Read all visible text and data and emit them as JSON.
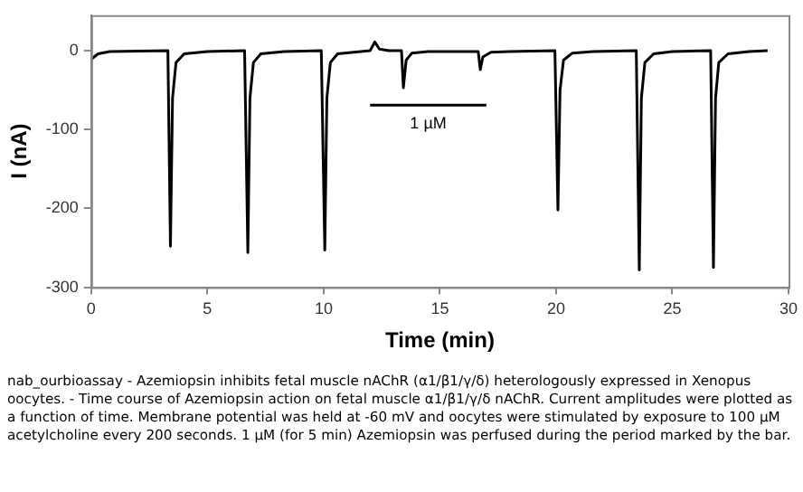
{
  "chart_data": {
    "type": "line",
    "xlabel": "Time (min)",
    "ylabel": "I (nA)",
    "series": [
      {
        "color": "#000000",
        "x": [
          0,
          0.3,
          0.8,
          3.3,
          3.41,
          3.5,
          3.65,
          4.0,
          5.0,
          6.6,
          6.74,
          6.83,
          6.98,
          7.3,
          8.3,
          9.9,
          10.05,
          10.14,
          10.29,
          10.6,
          11.6,
          12.0,
          12.2,
          12.4,
          12.8,
          13.35,
          13.43,
          13.55,
          13.8,
          14.5,
          16.65,
          16.74,
          16.85,
          17.2,
          18,
          19.95,
          20.08,
          20.17,
          20.32,
          20.7,
          21.6,
          23.45,
          23.58,
          23.67,
          23.82,
          24.2,
          25,
          26.65,
          26.77,
          26.86,
          27.0,
          27.4,
          28.3,
          29.1
        ],
        "values": [
          -11,
          -4,
          -1,
          0,
          -248,
          -60,
          -15,
          -4,
          -1,
          0,
          -256,
          -60,
          -15,
          -4,
          -1,
          0,
          -253,
          -60,
          -15,
          -4,
          -1,
          0,
          11,
          2,
          0,
          0,
          -47,
          -12,
          -3,
          -1,
          -1,
          -24,
          -8,
          -2,
          -1,
          0,
          -202,
          -50,
          -12,
          -3,
          -1,
          0,
          -278,
          -60,
          -15,
          -4,
          -1,
          0,
          -275,
          -60,
          -15,
          -4,
          -1,
          0
        ]
      },
      {
        "color": "#000000",
        "x": [
          12,
          17
        ],
        "values": [
          -69,
          -69
        ]
      }
    ],
    "xlim": [
      0,
      30
    ],
    "xticks": [
      0,
      5,
      10,
      15,
      20,
      25,
      30
    ],
    "ylim": [
      -300,
      45
    ],
    "yticks": [
      -300,
      -200,
      -100,
      0
    ],
    "grid": false,
    "legend": false,
    "marker": "none",
    "line_style": "solid",
    "annotations": [
      {
        "text": "1 µM",
        "x": 14.5,
        "y": -69
      },
      "nab_ourbioassay - Azemiopsin inhibits fetal muscle nAChR (α1/β1/γ/δ) heterologously expressed in Xenopus oocytes. - Time course of Azemiopsin action on fetal muscle α1/β1/γ/δ nAChR. Current amplitudes were plotted as a function of time. Membrane potential was held at -60 mV and oocytes were stimulated by exposure to 100 µM acetylcholine every 200 seconds. 1 µM (for 5 min) Azemiopsin was perfused during the period marked by the bar."
    ]
  }
}
